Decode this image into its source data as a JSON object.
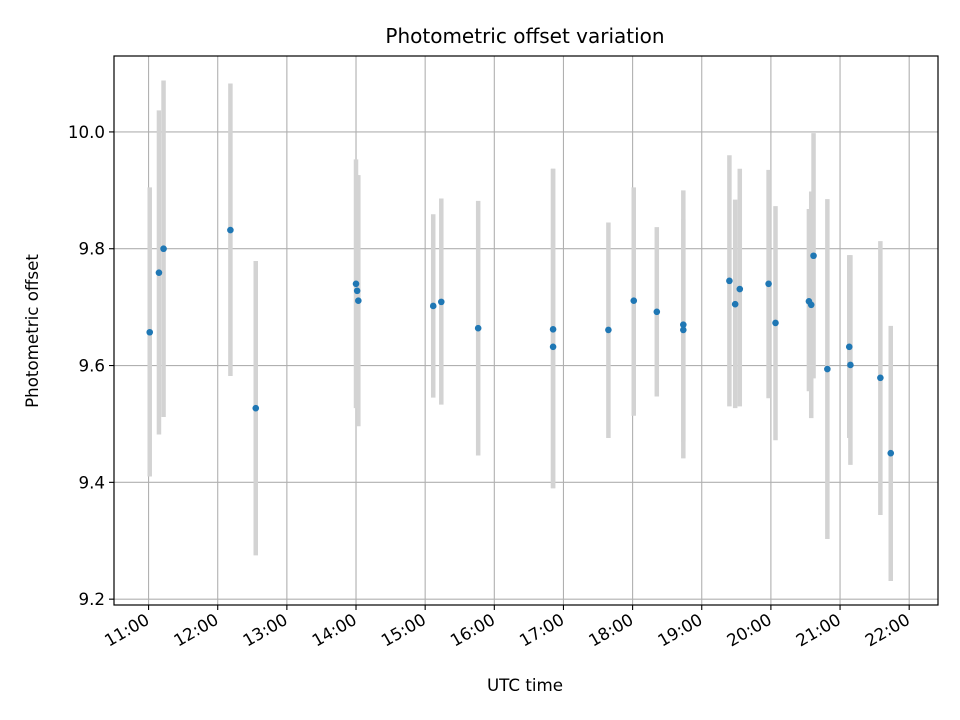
{
  "chart_data": {
    "type": "scatter",
    "title": "Photometric offset variation",
    "xlabel": "UTC time",
    "ylabel": "Photometric offset",
    "x_ticks": [
      "11:00",
      "12:00",
      "13:00",
      "14:00",
      "15:00",
      "16:00",
      "17:00",
      "18:00",
      "19:00",
      "20:00",
      "21:00",
      "22:00"
    ],
    "y_ticks": [
      "9.2",
      "9.4",
      "9.6",
      "9.8",
      "10.0"
    ],
    "xlim": [
      "10:30",
      "22:25"
    ],
    "ylim": [
      9.19,
      10.13
    ],
    "grid": true,
    "colors": {
      "points": "#1f77b4",
      "error_bars": "#d3d3d3",
      "grid": "#b0b0b0"
    },
    "series": [
      {
        "values": [
          {
            "x": "11:01",
            "y": 9.657,
            "ylow": 9.41,
            "yhigh": 9.905
          },
          {
            "x": "11:09",
            "y": 9.759,
            "ylow": 9.482,
            "yhigh": 10.037
          },
          {
            "x": "11:13",
            "y": 9.8,
            "ylow": 9.512,
            "yhigh": 10.088
          },
          {
            "x": "12:11",
            "y": 9.832,
            "ylow": 9.582,
            "yhigh": 10.083
          },
          {
            "x": "12:33",
            "y": 9.527,
            "ylow": 9.275,
            "yhigh": 9.779
          },
          {
            "x": "14:00",
            "y": 9.74,
            "ylow": 9.527,
            "yhigh": 9.953
          },
          {
            "x": "14:01",
            "y": 9.728,
            "ylow": 9.53,
            "yhigh": 9.926
          },
          {
            "x": "14:02",
            "y": 9.711,
            "ylow": 9.496,
            "yhigh": 9.926
          },
          {
            "x": "15:07",
            "y": 9.702,
            "ylow": 9.545,
            "yhigh": 9.859
          },
          {
            "x": "15:14",
            "y": 9.709,
            "ylow": 9.533,
            "yhigh": 9.886
          },
          {
            "x": "15:46",
            "y": 9.664,
            "ylow": 9.446,
            "yhigh": 9.882
          },
          {
            "x": "16:51",
            "y": 9.662,
            "ylow": 9.39,
            "yhigh": 9.937
          },
          {
            "x": "16:51",
            "y": 9.632,
            "ylow": 9.39,
            "yhigh": 9.937
          },
          {
            "x": "17:39",
            "y": 9.661,
            "ylow": 9.476,
            "yhigh": 9.845
          },
          {
            "x": "18:01",
            "y": 9.711,
            "ylow": 9.514,
            "yhigh": 9.905
          },
          {
            "x": "18:21",
            "y": 9.692,
            "ylow": 9.547,
            "yhigh": 9.837
          },
          {
            "x": "18:44",
            "y": 9.67,
            "ylow": 9.441,
            "yhigh": 9.9
          },
          {
            "x": "18:44",
            "y": 9.661,
            "ylow": 9.47,
            "yhigh": 9.85
          },
          {
            "x": "19:24",
            "y": 9.745,
            "ylow": 9.53,
            "yhigh": 9.96
          },
          {
            "x": "19:29",
            "y": 9.705,
            "ylow": 9.527,
            "yhigh": 9.884
          },
          {
            "x": "19:33",
            "y": 9.731,
            "ylow": 9.53,
            "yhigh": 9.937
          },
          {
            "x": "19:58",
            "y": 9.74,
            "ylow": 9.544,
            "yhigh": 9.935
          },
          {
            "x": "20:04",
            "y": 9.673,
            "ylow": 9.472,
            "yhigh": 9.873
          },
          {
            "x": "20:33",
            "y": 9.71,
            "ylow": 9.556,
            "yhigh": 9.868
          },
          {
            "x": "20:35",
            "y": 9.704,
            "ylow": 9.51,
            "yhigh": 9.898
          },
          {
            "x": "20:37",
            "y": 9.788,
            "ylow": 9.578,
            "yhigh": 9.998
          },
          {
            "x": "20:49",
            "y": 9.594,
            "ylow": 9.303,
            "yhigh": 9.885
          },
          {
            "x": "21:08",
            "y": 9.632,
            "ylow": 9.476,
            "yhigh": 9.789
          },
          {
            "x": "21:09",
            "y": 9.601,
            "ylow": 9.43,
            "yhigh": 9.789
          },
          {
            "x": "21:35",
            "y": 9.579,
            "ylow": 9.344,
            "yhigh": 9.813
          },
          {
            "x": "21:44",
            "y": 9.45,
            "ylow": 9.231,
            "yhigh": 9.668
          }
        ]
      }
    ]
  }
}
